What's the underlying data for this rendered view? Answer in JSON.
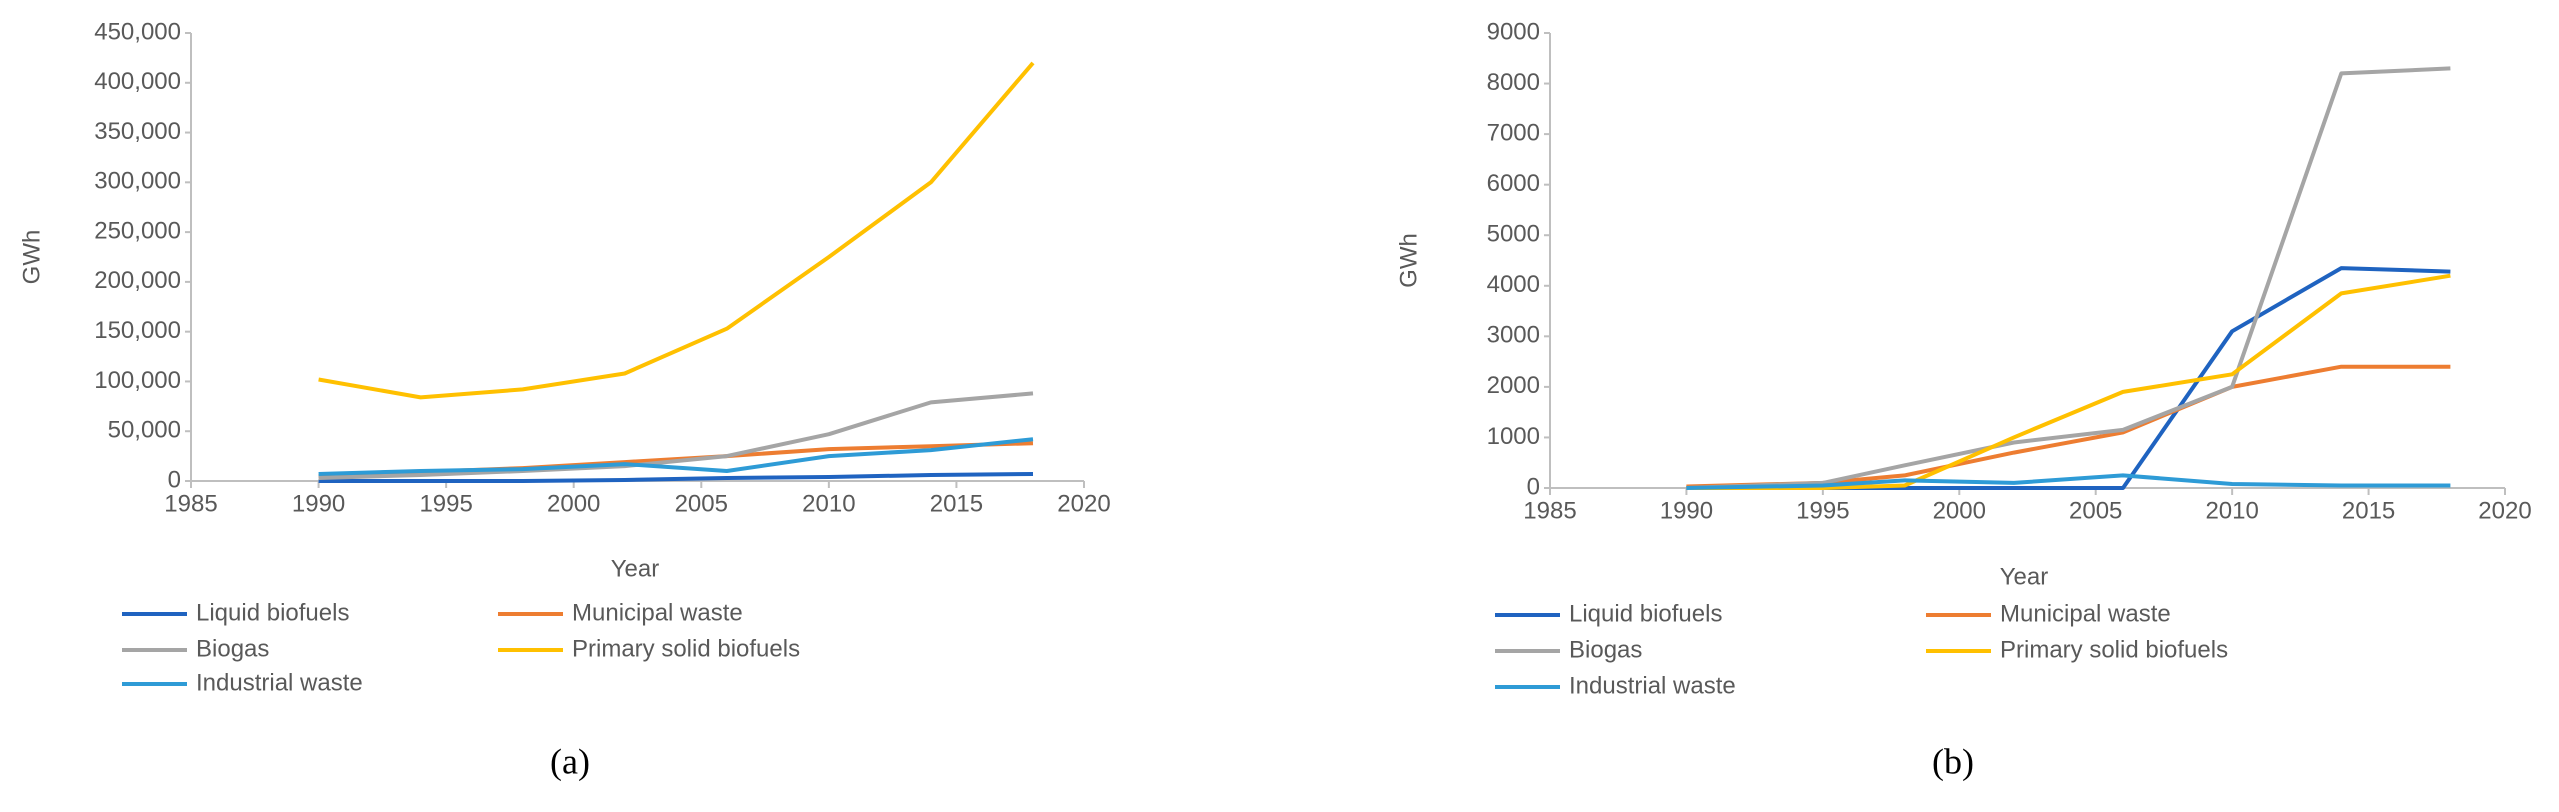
{
  "chart_data": [
    {
      "type": "line",
      "caption": "(a)",
      "x_label": "Year",
      "y_label": "GWh",
      "x": [
        1990,
        1994,
        1998,
        2002,
        2006,
        2010,
        2014,
        2018
      ],
      "xlim": [
        1985,
        2020
      ],
      "xticks": [
        1985,
        1990,
        1995,
        2000,
        2005,
        2010,
        2015,
        2020
      ],
      "ylim": [
        0,
        450000
      ],
      "yticks": [
        0,
        {
          "value": 50000,
          "label": "50,000"
        },
        {
          "value": 100000,
          "label": "100,000"
        },
        {
          "value": 150000,
          "label": "150,000"
        },
        {
          "value": 200000,
          "label": "200,000"
        },
        {
          "value": 250000,
          "label": "250,000"
        },
        {
          "value": 300000,
          "label": "300,000"
        },
        {
          "value": 350000,
          "label": "350,000"
        },
        {
          "value": 400000,
          "label": "400,000"
        },
        {
          "value": 450000,
          "label": "450,000"
        }
      ],
      "grid": false,
      "series": [
        {
          "name": "Liquid biofuels",
          "color": "#1f63c0",
          "values": [
            0,
            0,
            0,
            1000,
            3000,
            4000,
            6000,
            7000
          ]
        },
        {
          "name": "Municipal waste",
          "color": "#ed7d31",
          "values": [
            5000,
            9000,
            13000,
            19000,
            25000,
            32000,
            35000,
            38000
          ]
        },
        {
          "name": "Biogas",
          "color": "#a5a5a5",
          "values": [
            3000,
            6000,
            10000,
            15000,
            25000,
            47000,
            79000,
            88000
          ]
        },
        {
          "name": "Primary solid biofuels",
          "color": "#ffc000",
          "values": [
            102000,
            84000,
            92000,
            108000,
            153000,
            225000,
            300000,
            420000
          ]
        },
        {
          "name": "Industrial waste",
          "color": "#2e9bd6",
          "values": [
            7000,
            10000,
            12000,
            17000,
            10000,
            25000,
            31000,
            42000
          ]
        }
      ]
    },
    {
      "type": "line",
      "caption": "(b)",
      "x_label": "Year",
      "y_label": "GWh",
      "x": [
        1990,
        1995,
        1998,
        2002,
        2006,
        2010,
        2014,
        2018
      ],
      "xlim": [
        1985,
        2020
      ],
      "xticks": [
        1985,
        1990,
        1995,
        2000,
        2005,
        2010,
        2015,
        2020
      ],
      "ylim": [
        0,
        9000
      ],
      "yticks": [
        0,
        1000,
        2000,
        3000,
        4000,
        5000,
        6000,
        7000,
        8000,
        9000
      ],
      "grid": false,
      "series": [
        {
          "name": "Liquid biofuels",
          "color": "#1f63c0",
          "values": [
            0,
            0,
            0,
            0,
            0,
            3100,
            4350,
            4280
          ]
        },
        {
          "name": "Municipal waste",
          "color": "#ed7d31",
          "values": [
            30,
            100,
            250,
            700,
            1100,
            2000,
            2400,
            2400
          ]
        },
        {
          "name": "Biogas",
          "color": "#a5a5a5",
          "values": [
            0,
            100,
            450,
            900,
            1150,
            2000,
            8200,
            8300
          ]
        },
        {
          "name": "Primary solid biofuels",
          "color": "#ffc000",
          "values": [
            0,
            0,
            50,
            1000,
            1900,
            2250,
            3850,
            4200
          ]
        },
        {
          "name": "Industrial waste",
          "color": "#2e9bd6",
          "values": [
            0,
            50,
            150,
            100,
            250,
            80,
            50,
            50
          ]
        }
      ]
    }
  ]
}
